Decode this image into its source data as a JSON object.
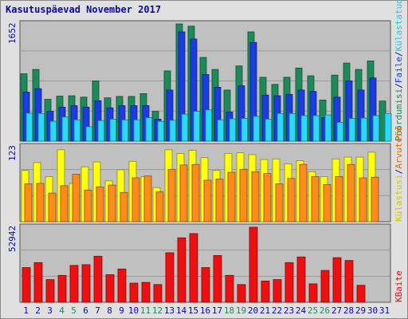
{
  "title": "Kasutuspäevad November 2017",
  "right_labels": {
    "panel1": [
      {
        "text": "Pöördumisi",
        "color": "#1d8a5a"
      },
      {
        "text": "/",
        "color": "#0a0aa0"
      },
      {
        "text": "Faile",
        "color": "#1a3ce0"
      },
      {
        "text": "/",
        "color": "#0a0aa0"
      },
      {
        "text": "Külastatud lehekülgi",
        "color": "#2cc4d8"
      }
    ],
    "panel2": [
      {
        "text": "Külastusi",
        "color": "#c8c800"
      },
      {
        "text": "/",
        "color": "#0a0aa0"
      },
      {
        "text": "Arvuteid",
        "color": "#e07010"
      }
    ],
    "panel3": [
      {
        "text": "KBaite",
        "color": "#e01010"
      }
    ]
  },
  "colors": {
    "hits": "#1d8a5a",
    "files": "#1a3ce0",
    "pages": "#2cd8ff",
    "visits": "#ffff10",
    "sites": "#ff8c1a",
    "kbytes": "#ee1010",
    "plot_bg": "#c0c0c0",
    "weekend_label": "#1d8a5a",
    "weekday_label": "#0a0aa0"
  },
  "chart_data": [
    {
      "type": "bar",
      "panel": "hits-files-pages",
      "y_tick_label": "1652",
      "ylim": [
        0,
        1652
      ],
      "categories": [
        "1",
        "2",
        "3",
        "4",
        "5",
        "6",
        "7",
        "8",
        "9",
        "10",
        "11",
        "12",
        "13",
        "14",
        "15",
        "16",
        "17",
        "18",
        "19",
        "20",
        "21",
        "22",
        "23",
        "24",
        "25",
        "26",
        "27",
        "28",
        "29",
        "30",
        "31"
      ],
      "weekend_days": [
        "4",
        "5",
        "11",
        "12",
        "18",
        "19",
        "25",
        "26"
      ],
      "series": [
        {
          "name": "Pöördumisi",
          "key": "hits",
          "values": [
            950,
            1010,
            590,
            635,
            640,
            620,
            850,
            610,
            630,
            630,
            670,
            420,
            990,
            1652,
            1620,
            1180,
            1010,
            720,
            1060,
            1540,
            900,
            800,
            900,
            1030,
            920,
            580,
            930,
            1100,
            1010,
            1130,
            565
          ]
        },
        {
          "name": "Faile",
          "key": "files",
          "values": [
            690,
            740,
            420,
            480,
            500,
            480,
            570,
            470,
            500,
            500,
            500,
            310,
            720,
            1540,
            1440,
            940,
            760,
            410,
            780,
            1390,
            650,
            640,
            660,
            720,
            700,
            330,
            620,
            850,
            720,
            890,
            0
          ]
        },
        {
          "name": "Külastatud lehekülgi",
          "key": "pages",
          "values": [
            395,
            390,
            280,
            340,
            300,
            205,
            290,
            310,
            300,
            300,
            330,
            280,
            295,
            380,
            420,
            440,
            300,
            315,
            320,
            350,
            310,
            390,
            390,
            360,
            360,
            370,
            265,
            320,
            325,
            360,
            390
          ]
        }
      ]
    },
    {
      "type": "bar",
      "panel": "visits-sites",
      "y_tick_label": "123",
      "ylim": [
        0,
        123
      ],
      "categories": [
        "1",
        "2",
        "3",
        "4",
        "5",
        "6",
        "7",
        "8",
        "9",
        "10",
        "11",
        "12",
        "13",
        "14",
        "15",
        "16",
        "17",
        "18",
        "19",
        "20",
        "21",
        "22",
        "23",
        "24",
        "25",
        "26",
        "27",
        "28",
        "29",
        "30",
        "31"
      ],
      "series": [
        {
          "name": "Külastusi",
          "key": "visits",
          "values": [
            84,
            97,
            74,
            118,
            63,
            90,
            98,
            67,
            85,
            99,
            74,
            56,
            118,
            112,
            117,
            105,
            84,
            112,
            113,
            110,
            102,
            103,
            95,
            100,
            82,
            74,
            103,
            106,
            106,
            114,
            0
          ]
        },
        {
          "name": "Arvuteid",
          "key": "sites",
          "values": [
            62,
            63,
            47,
            59,
            78,
            52,
            57,
            60,
            48,
            72,
            75,
            49,
            86,
            93,
            94,
            68,
            70,
            81,
            86,
            82,
            79,
            62,
            71,
            94,
            74,
            61,
            74,
            94,
            72,
            73,
            0
          ]
        }
      ]
    },
    {
      "type": "bar",
      "panel": "kbytes",
      "y_tick_label": "52942",
      "ylim": [
        0,
        52942
      ],
      "categories": [
        "1",
        "2",
        "3",
        "4",
        "5",
        "6",
        "7",
        "8",
        "9",
        "10",
        "11",
        "12",
        "13",
        "14",
        "15",
        "16",
        "17",
        "18",
        "19",
        "20",
        "21",
        "22",
        "23",
        "24",
        "25",
        "26",
        "27",
        "28",
        "29",
        "30",
        "31"
      ],
      "series": [
        {
          "name": "KBaite",
          "key": "kbytes",
          "values": [
            24500,
            28000,
            16000,
            19000,
            26000,
            26500,
            32500,
            19500,
            23500,
            13500,
            14000,
            12500,
            35000,
            45500,
            48500,
            24500,
            33000,
            19000,
            12500,
            53000,
            15000,
            16000,
            28000,
            32000,
            13000,
            22500,
            31500,
            29500,
            12000,
            0,
            0
          ]
        }
      ]
    }
  ]
}
